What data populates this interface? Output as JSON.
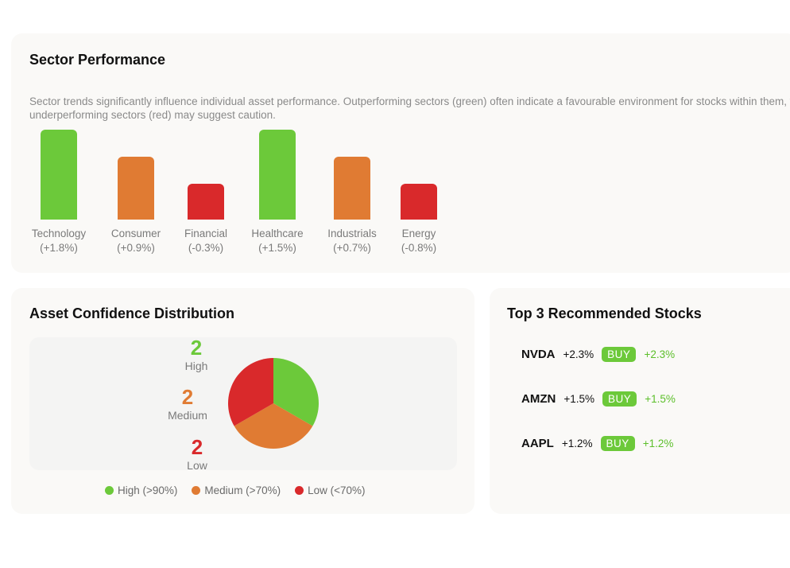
{
  "sector_performance": {
    "title": "Sector Performance",
    "description": "Sector trends significantly influence individual asset performance. Outperforming sectors (green) often indicate a favourable environment for stocks within them, while underperforming sectors (red) may suggest caution.",
    "sectors": [
      {
        "name": "Technology",
        "change": "(+1.8%)",
        "color": "#6cc93a"
      },
      {
        "name": "Consumer",
        "change": "(+0.9%)",
        "color": "#e07b33"
      },
      {
        "name": "Financial",
        "change": "(-0.3%)",
        "color": "#d9292b"
      },
      {
        "name": "Healthcare",
        "change": "(+1.5%)",
        "color": "#6cc93a"
      },
      {
        "name": "Industrials",
        "change": "(+0.7%)",
        "color": "#e07b33"
      },
      {
        "name": "Energy",
        "change": "(-0.8%)",
        "color": "#d9292b"
      }
    ]
  },
  "asset_confidence": {
    "title": "Asset Confidence Distribution",
    "groups": [
      {
        "count": "2",
        "label": "High",
        "color": "#6cc93a"
      },
      {
        "count": "2",
        "label": "Medium",
        "color": "#e07b33"
      },
      {
        "count": "2",
        "label": "Low",
        "color": "#d9292b"
      }
    ],
    "legend": [
      {
        "label": "High (>90%)",
        "color": "#6cc93a"
      },
      {
        "label": "Medium (>70%)",
        "color": "#e07b33"
      },
      {
        "label": "Low (<70%)",
        "color": "#d9292b"
      }
    ]
  },
  "top_stocks": {
    "title": "Top 3 Recommended Stocks",
    "stocks": [
      {
        "ticker": "NVDA",
        "change": "+2.3%",
        "action": "BUY",
        "change_green": "+2.3%"
      },
      {
        "ticker": "AMZN",
        "change": "+1.5%",
        "action": "BUY",
        "change_green": "+1.5%"
      },
      {
        "ticker": "AAPL",
        "change": "+1.2%",
        "action": "BUY",
        "change_green": "+1.2%"
      }
    ]
  }
}
